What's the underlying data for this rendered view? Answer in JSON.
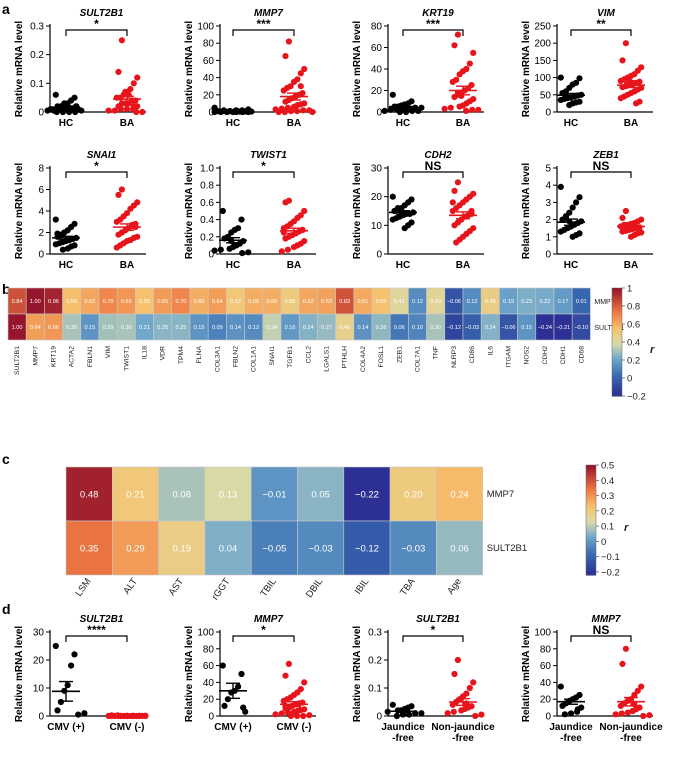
{
  "panels": {
    "a": "a",
    "b": "b",
    "c": "c",
    "d": "d"
  },
  "colors": {
    "hc": "#000000",
    "ba": "#e8141c"
  },
  "ylabel": "Relative mRNA level",
  "chart_data": [
    {
      "type": "scatter",
      "id": "a1",
      "title": "SULT2B1",
      "categories": [
        "HC",
        "BA"
      ],
      "ylabel": "Relative mRNA level",
      "yticks": [
        "0",
        "0.1",
        "0.2",
        "0.3"
      ],
      "ylim": [
        0,
        0.3
      ],
      "sig": "*",
      "series": [
        {
          "name": "HC",
          "values": [
            0.06,
            0.05,
            0.04,
            0.03,
            0.03,
            0.02,
            0.02,
            0.02,
            0.01,
            0.01,
            0.01,
            0.01,
            0.005,
            0.005,
            0.005,
            0.0,
            0.0,
            0.0,
            0.0,
            0.01,
            0.02
          ],
          "mean": 0.017,
          "sem": 0.004
        },
        {
          "name": "BA",
          "values": [
            0.25,
            0.14,
            0.12,
            0.1,
            0.08,
            0.07,
            0.06,
            0.05,
            0.05,
            0.04,
            0.04,
            0.03,
            0.03,
            0.03,
            0.02,
            0.02,
            0.02,
            0.01,
            0.01,
            0.01,
            0.005,
            0.005,
            0.0,
            0.0,
            0.06,
            0.07
          ],
          "mean": 0.045,
          "sem": 0.01
        }
      ]
    },
    {
      "type": "scatter",
      "id": "a2",
      "title": "MMP7",
      "categories": [
        "HC",
        "BA"
      ],
      "ylabel": "Relative mRNA level",
      "yticks": [
        "0",
        "20",
        "40",
        "60",
        "80",
        "100"
      ],
      "ylim": [
        0,
        100
      ],
      "sig": "***",
      "series": [
        {
          "name": "HC",
          "values": [
            5,
            3,
            2,
            2,
            1,
            1,
            1,
            0.5,
            0.5,
            0.5,
            0,
            0,
            0,
            0,
            0,
            0,
            0,
            1,
            2
          ],
          "mean": 1.5,
          "sem": 0.5
        },
        {
          "name": "BA",
          "values": [
            82,
            65,
            50,
            45,
            38,
            35,
            30,
            28,
            25,
            22,
            20,
            18,
            16,
            14,
            12,
            10,
            9,
            8,
            6,
            5,
            4,
            3,
            2,
            2,
            1,
            1,
            0,
            0,
            0,
            30
          ],
          "mean": 18,
          "sem": 4
        }
      ]
    },
    {
      "type": "scatter",
      "id": "a3",
      "title": "KRT19",
      "categories": [
        "HC",
        "BA"
      ],
      "ylabel": "Relative mRNA level",
      "yticks": [
        "0",
        "20",
        "40",
        "60",
        "80"
      ],
      "ylim": [
        0,
        80
      ],
      "sig": "***",
      "series": [
        {
          "name": "HC",
          "values": [
            16,
            10,
            8,
            7,
            6,
            5,
            5,
            4,
            4,
            3,
            3,
            2,
            2,
            1,
            1,
            1,
            0,
            0
          ],
          "mean": 5,
          "sem": 1.2
        },
        {
          "name": "BA",
          "values": [
            72,
            62,
            55,
            45,
            40,
            38,
            35,
            30,
            28,
            25,
            22,
            20,
            18,
            16,
            14,
            12,
            10,
            8,
            6,
            5,
            4,
            3,
            2,
            2,
            1,
            15,
            18
          ],
          "mean": 20,
          "sem": 4
        }
      ]
    },
    {
      "type": "scatter",
      "id": "a4",
      "title": "VIM",
      "categories": [
        "HC",
        "BA"
      ],
      "ylabel": "Relative mRNA level",
      "yticks": [
        "0",
        "50",
        "100",
        "150",
        "200",
        "250"
      ],
      "ylim": [
        0,
        250
      ],
      "sig": "**",
      "series": [
        {
          "name": "HC",
          "values": [
            100,
            98,
            85,
            80,
            70,
            60,
            55,
            50,
            48,
            45,
            42,
            40,
            38,
            35,
            30,
            28,
            25,
            20,
            50
          ],
          "mean": 49,
          "sem": 5
        },
        {
          "name": "BA",
          "values": [
            200,
            150,
            130,
            120,
            110,
            105,
            100,
            95,
            90,
            88,
            85,
            80,
            78,
            75,
            72,
            70,
            65,
            60,
            55,
            50,
            45,
            40,
            30,
            25,
            85,
            90
          ],
          "mean": 78,
          "sem": 7
        }
      ]
    },
    {
      "type": "scatter",
      "id": "a5",
      "title": "SNAI1",
      "categories": [
        "HC",
        "BA"
      ],
      "ylabel": "Relative mRNA level",
      "yticks": [
        "0",
        "2",
        "4",
        "6",
        "8"
      ],
      "ylim": [
        0,
        8
      ],
      "sig": "*",
      "series": [
        {
          "name": "HC",
          "values": [
            3.2,
            2.8,
            2.5,
            2.2,
            2.0,
            1.8,
            1.6,
            1.5,
            1.4,
            1.3,
            1.2,
            1.1,
            1.0,
            0.9,
            0.8,
            0.7,
            0.5,
            0.4,
            1.7,
            1.9
          ],
          "mean": 1.5,
          "sem": 0.15
        },
        {
          "name": "BA",
          "values": [
            6.0,
            5.5,
            4.8,
            4.5,
            4.2,
            3.8,
            3.5,
            3.2,
            3.0,
            2.8,
            2.6,
            2.4,
            2.2,
            2.0,
            1.8,
            1.6,
            1.5,
            1.3,
            1.2,
            1.0,
            0.8,
            0.6,
            2.5,
            2.7
          ],
          "mean": 2.5,
          "sem": 0.3
        }
      ]
    },
    {
      "type": "scatter",
      "id": "a6",
      "title": "TWIST1",
      "categories": [
        "HC",
        "BA"
      ],
      "ylabel": "Relative mRNA level",
      "yticks": [
        "0",
        "0.2",
        "0.4",
        "0.6",
        "0.8",
        "1.0"
      ],
      "ylim": [
        0,
        1
      ],
      "sig": "*",
      "series": [
        {
          "name": "HC",
          "values": [
            0.5,
            0.4,
            0.3,
            0.28,
            0.25,
            0.2,
            0.18,
            0.15,
            0.12,
            0.1,
            0.08,
            0.06,
            0.05,
            0.04,
            0.02,
            0.01,
            0.1,
            0.15
          ],
          "mean": 0.16,
          "sem": 0.03
        },
        {
          "name": "BA",
          "values": [
            0.62,
            0.6,
            0.5,
            0.45,
            0.42,
            0.38,
            0.35,
            0.32,
            0.3,
            0.28,
            0.26,
            0.24,
            0.22,
            0.2,
            0.18,
            0.15,
            0.12,
            0.1,
            0.08,
            0.05,
            0.03,
            0.25,
            0.28
          ],
          "mean": 0.27,
          "sem": 0.03
        }
      ]
    },
    {
      "type": "scatter",
      "id": "a7",
      "title": "CDH2",
      "categories": [
        "HC",
        "BA"
      ],
      "ylabel": "Relative mRNA level",
      "yticks": [
        "0",
        "10",
        "20",
        "30"
      ],
      "ylim": [
        0,
        30
      ],
      "sig": "NS",
      "series": [
        {
          "name": "HC",
          "values": [
            20,
            19,
            18,
            17,
            16,
            15.5,
            15,
            14.5,
            14,
            14,
            13.5,
            13,
            12.5,
            12,
            11,
            10,
            9,
            15,
            16
          ],
          "mean": 14.5,
          "sem": 0.6
        },
        {
          "name": "BA",
          "values": [
            25,
            22,
            21,
            20,
            19,
            18,
            17,
            16,
            15,
            14,
            13.5,
            13,
            12,
            11,
            10,
            9,
            8,
            7,
            6,
            5,
            4,
            18,
            15
          ],
          "mean": 13.5,
          "sem": 1.2
        }
      ]
    },
    {
      "type": "scatter",
      "id": "a8",
      "title": "ZEB1",
      "categories": [
        "HC",
        "BA"
      ],
      "ylabel": "Relative mRNA level",
      "yticks": [
        "0",
        "1",
        "2",
        "3",
        "4",
        "5"
      ],
      "ylim": [
        0,
        5
      ],
      "sig": "NS",
      "series": [
        {
          "name": "HC",
          "values": [
            3.9,
            3.3,
            3.0,
            2.7,
            2.4,
            2.2,
            2.0,
            1.9,
            1.8,
            1.7,
            1.6,
            1.5,
            1.4,
            1.3,
            1.2,
            1.1,
            1.0,
            1.9,
            2.1
          ],
          "mean": 1.85,
          "sem": 0.18
        },
        {
          "name": "BA",
          "values": [
            2.5,
            2.1,
            2.0,
            1.9,
            1.8,
            1.75,
            1.7,
            1.65,
            1.6,
            1.55,
            1.5,
            1.45,
            1.4,
            1.35,
            1.3,
            1.25,
            1.2,
            1.1,
            1.0,
            1.6,
            1.7
          ],
          "mean": 1.6,
          "sem": 0.08
        }
      ]
    },
    {
      "type": "heatmap",
      "id": "b",
      "rows": [
        "MMP7",
        "SULT2B1"
      ],
      "columns": [
        "SULT2B1",
        "MMP7",
        "KRT19",
        "ACTA2",
        "FBLN1",
        "VIM",
        "TWIST1",
        "IL18",
        "VDR",
        "TPM4",
        "FLNA",
        "COL3A1",
        "FBLN2",
        "COL1A1",
        "SNAI1",
        "TGFB1",
        "CCL2",
        "LGALS1",
        "PTHLH",
        "COL4A2",
        "FOSL1",
        "ZEB1",
        "COL7A1",
        "TNF",
        "NLRP3",
        "CD86",
        "IL6",
        "ITGAM",
        "NOS2",
        "CDH2",
        "CDH1",
        "CD68"
      ],
      "values": [
        [
          "0.84",
          "1.00",
          "0.96",
          "0.56",
          "0.62",
          "0.70",
          "0.66",
          "0.55",
          "0.65",
          "0.70",
          "0.60",
          "0.64",
          "0.52",
          "0.60",
          "0.60",
          "0.50",
          "0.62",
          "0.63",
          "0.83",
          "0.61",
          "0.55",
          "0.41",
          "0.12",
          "0.43",
          "−0.06",
          "0.12",
          "0.48",
          "0.19",
          "0.23",
          "0.22",
          "0.17",
          "0.01"
        ],
        [
          "1.00",
          "0.64",
          "0.66",
          "0.30",
          "0.15",
          "0.29",
          "0.30",
          "0.21",
          "0.25",
          "0.25",
          "0.15",
          "0.09",
          "0.14",
          "0.12",
          "0.34",
          "0.16",
          "0.24",
          "0.27",
          "0.46",
          "0.14",
          "0.26",
          "0.06",
          "0.10",
          "0.30",
          "−0.12",
          "−0.03",
          "0.24",
          "−0.06",
          "0.15",
          "−0.24",
          "−0.21",
          "−0.10"
        ]
      ],
      "colorbar": {
        "label": "r",
        "ticks": [
          "1",
          "0.8",
          "0.6",
          "0.4",
          "0.2",
          "0",
          "−0.2"
        ],
        "range": [
          -0.2,
          1
        ]
      }
    },
    {
      "type": "heatmap",
      "id": "c",
      "rows": [
        "MMP7",
        "SULT2B1"
      ],
      "columns": [
        "LSM",
        "ALT",
        "AST",
        "rGGT",
        "TBIL",
        "DBIL",
        "IBIL",
        "TBA",
        "Age"
      ],
      "values": [
        [
          "0.48",
          "0.21",
          "0.08",
          "0.13",
          "−0.01",
          "0.05",
          "−0.22",
          "0.20",
          "0.24"
        ],
        [
          "0.35",
          "0.29",
          "0.19",
          "0.04",
          "−0.05",
          "−0.03",
          "−0.12",
          "−0.03",
          "0.06"
        ]
      ],
      "colorbar": {
        "label": "r",
        "ticks": [
          "0.5",
          "0.4",
          "0.3",
          "0.2",
          "0.1",
          "0",
          "−0.1",
          "−0.2"
        ],
        "range": [
          -0.22,
          0.5
        ]
      }
    },
    {
      "type": "scatter",
      "id": "d1",
      "title": "SULT2B1",
      "categories": [
        "CMV (+)",
        "CMV (-)"
      ],
      "ylabel": "Relative mRNA level",
      "yticks": [
        "0",
        "10",
        "20",
        "30"
      ],
      "ylim": [
        0,
        30
      ],
      "sig": "****",
      "series": [
        {
          "name": "CMV (+)",
          "values": [
            25,
            22,
            18,
            11,
            9,
            5,
            2,
            1,
            0.5
          ],
          "mean": 8.8,
          "sem": 3.5
        },
        {
          "name": "CMV (-)",
          "values": [
            0.2,
            0.2,
            0.1,
            0.1,
            0.1,
            0.1,
            0.05,
            0.05,
            0.05,
            0.05,
            0,
            0,
            0,
            0,
            0,
            0,
            0,
            0,
            0,
            0
          ],
          "mean": 0.05,
          "sem": 0.02
        }
      ]
    },
    {
      "type": "scatter",
      "id": "d2",
      "title": "MMP7",
      "categories": [
        "CMV (+)",
        "CMV (-)"
      ],
      "ylabel": "Relative mRNA level",
      "yticks": [
        "0",
        "20",
        "40",
        "60",
        "80",
        "100"
      ],
      "ylim": [
        0,
        100
      ],
      "sig": "*",
      "series": [
        {
          "name": "CMV (+)",
          "values": [
            60,
            50,
            35,
            30,
            28,
            20,
            12,
            10,
            5
          ],
          "mean": 30,
          "sem": 9
        },
        {
          "name": "CMV (-)",
          "values": [
            62,
            48,
            40,
            32,
            28,
            25,
            22,
            20,
            18,
            16,
            15,
            14,
            12,
            10,
            9,
            8,
            7,
            6,
            5,
            4,
            3,
            2,
            1,
            0,
            0,
            0,
            10,
            12
          ],
          "mean": 14,
          "sem": 3
        }
      ]
    },
    {
      "type": "scatter",
      "id": "d3",
      "title": "SULT2B1",
      "categories": [
        "Jaundice\n-free",
        "Non-jaundice\n-free"
      ],
      "ylabel": "Relative mRNA level",
      "yticks": [
        "0",
        "0.1",
        "0.2",
        "0.3"
      ],
      "ylim": [
        0,
        0.3
      ],
      "sig": "*",
      "series": [
        {
          "name": "Jaundice -free",
          "values": [
            0.04,
            0.035,
            0.03,
            0.025,
            0.02,
            0.02,
            0.015,
            0.01,
            0.01,
            0.005,
            0.005,
            0.0
          ],
          "mean": 0.017,
          "sem": 0.004
        },
        {
          "name": "Non-jaundice -free",
          "values": [
            0.2,
            0.15,
            0.12,
            0.1,
            0.08,
            0.07,
            0.06,
            0.05,
            0.04,
            0.035,
            0.03,
            0.025,
            0.02,
            0.015,
            0.01,
            0.005,
            0.0,
            0.045
          ],
          "mean": 0.05,
          "sem": 0.012
        }
      ]
    },
    {
      "type": "scatter",
      "id": "d4",
      "title": "MMP7",
      "categories": [
        "Jaundice\n-free",
        "Non-jaundice\n-free"
      ],
      "ylabel": "Relative mRNA level",
      "yticks": [
        "0",
        "20",
        "40",
        "60",
        "80",
        "100"
      ],
      "ylim": [
        0,
        100
      ],
      "sig": "NS",
      "series": [
        {
          "name": "Jaundice -free",
          "values": [
            35,
            25,
            22,
            20,
            18,
            15,
            12,
            10,
            8,
            5,
            3,
            2
          ],
          "mean": 17,
          "sem": 3
        },
        {
          "name": "Non-jaundice -free",
          "values": [
            80,
            62,
            35,
            30,
            25,
            20,
            18,
            15,
            12,
            10,
            8,
            6,
            4,
            3,
            2,
            1,
            0,
            14
          ],
          "mean": 17,
          "sem": 5
        }
      ]
    }
  ]
}
